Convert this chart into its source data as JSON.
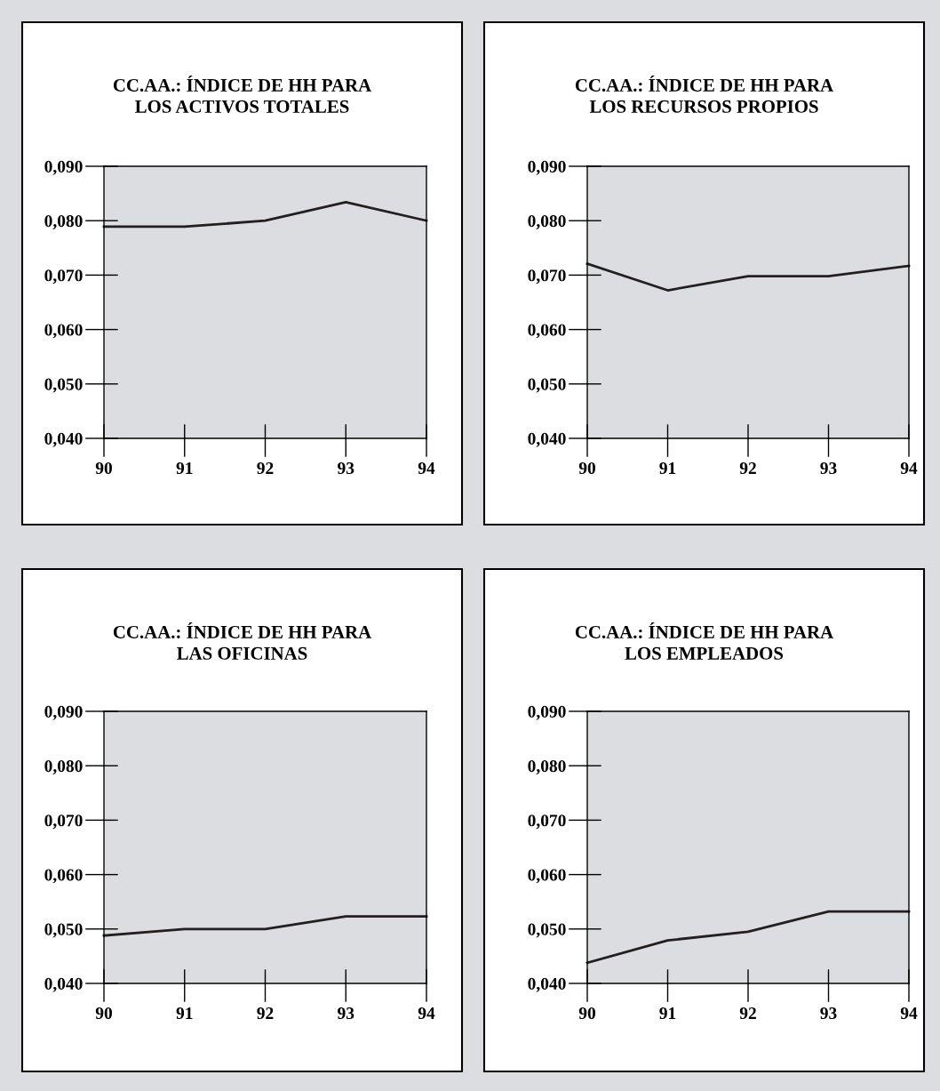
{
  "chart_data": [
    {
      "type": "line",
      "title": "CC.AA.: ÍNDICE DE HH PARA\nLOS ACTIVOS TOTALES",
      "x": [
        90,
        91,
        92,
        93,
        94
      ],
      "xlim": [
        90,
        94
      ],
      "xticks": [
        90,
        91,
        92,
        93,
        94
      ],
      "ylim": [
        0.04,
        0.09
      ],
      "yticks": [
        {
          "value": 0.04,
          "label": "0,040"
        },
        {
          "value": 0.05,
          "label": "0,050"
        },
        {
          "value": 0.06,
          "label": "0,060"
        },
        {
          "value": 0.07,
          "label": "0,070"
        },
        {
          "value": 0.08,
          "label": "0,080"
        },
        {
          "value": 0.09,
          "label": "0,090"
        }
      ],
      "grid": false,
      "line_style": "solid",
      "marker": "none",
      "series": [
        {
          "color": "#231f20",
          "values": [
            0.0789,
            0.0789,
            0.08,
            0.0834,
            0.08
          ]
        }
      ]
    },
    {
      "type": "line",
      "title": "CC.AA.: ÍNDICE DE HH PARA\nLOS RECURSOS PROPIOS",
      "x": [
        90,
        91,
        92,
        93,
        94
      ],
      "xlim": [
        90,
        94
      ],
      "xticks": [
        90,
        91,
        92,
        93,
        94
      ],
      "ylim": [
        0.04,
        0.09
      ],
      "yticks": [
        {
          "value": 0.04,
          "label": "0,040"
        },
        {
          "value": 0.05,
          "label": "0,050"
        },
        {
          "value": 0.06,
          "label": "0,060"
        },
        {
          "value": 0.07,
          "label": "0,070"
        },
        {
          "value": 0.08,
          "label": "0,080"
        },
        {
          "value": 0.09,
          "label": "0,090"
        }
      ],
      "grid": false,
      "line_style": "solid",
      "marker": "none",
      "series": [
        {
          "color": "#231f20",
          "values": [
            0.0721,
            0.0672,
            0.0698,
            0.0698,
            0.0717
          ]
        }
      ]
    },
    {
      "type": "line",
      "title": "CC.AA.: ÍNDICE DE HH PARA\nLAS OFICINAS",
      "x": [
        90,
        91,
        92,
        93,
        94
      ],
      "xlim": [
        90,
        94
      ],
      "xticks": [
        90,
        91,
        92,
        93,
        94
      ],
      "ylim": [
        0.04,
        0.09
      ],
      "yticks": [
        {
          "value": 0.04,
          "label": "0,040"
        },
        {
          "value": 0.05,
          "label": "0,050"
        },
        {
          "value": 0.06,
          "label": "0,060"
        },
        {
          "value": 0.07,
          "label": "0,070"
        },
        {
          "value": 0.08,
          "label": "0,080"
        },
        {
          "value": 0.09,
          "label": "0,090"
        }
      ],
      "grid": false,
      "line_style": "solid",
      "marker": "none",
      "series": [
        {
          "color": "#231f20",
          "values": [
            0.0488,
            0.05,
            0.05,
            0.0523,
            0.0523
          ]
        }
      ]
    },
    {
      "type": "line",
      "title": "CC.AA.: ÍNDICE DE HH PARA\nLOS EMPLEADOS",
      "x": [
        90,
        91,
        92,
        93,
        94
      ],
      "xlim": [
        90,
        94
      ],
      "xticks": [
        90,
        91,
        92,
        93,
        94
      ],
      "ylim": [
        0.04,
        0.09
      ],
      "yticks": [
        {
          "value": 0.04,
          "label": "0,040"
        },
        {
          "value": 0.05,
          "label": "0,050"
        },
        {
          "value": 0.06,
          "label": "0,060"
        },
        {
          "value": 0.07,
          "label": "0,070"
        },
        {
          "value": 0.08,
          "label": "0,080"
        },
        {
          "value": 0.09,
          "label": "0,090"
        }
      ],
      "grid": false,
      "line_style": "solid",
      "marker": "none",
      "series": [
        {
          "color": "#231f20",
          "values": [
            0.0438,
            0.0479,
            0.0495,
            0.0532,
            0.0532
          ]
        }
      ]
    }
  ]
}
